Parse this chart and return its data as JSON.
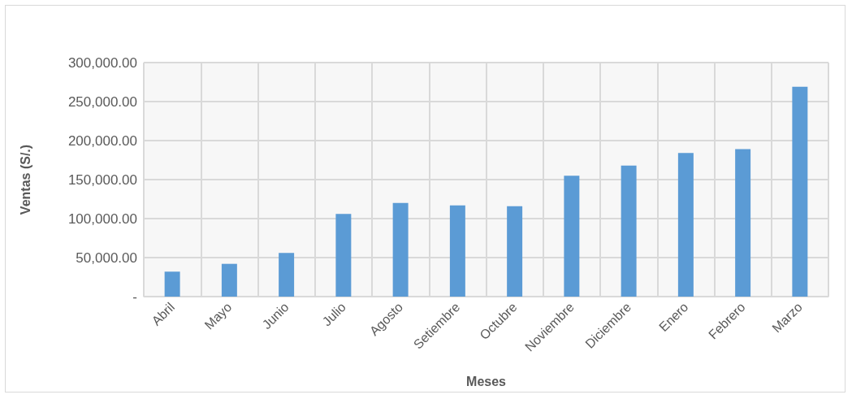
{
  "chart_data": {
    "type": "bar",
    "xlabel": "Meses",
    "ylabel": "Ventas (S/.)",
    "categories": [
      "Abril",
      "Mayo",
      "Junio",
      "Julio",
      "Agosto",
      "Setiembre",
      "Octubre",
      "Noviembre",
      "Diciembre",
      "Enero",
      "Febrero",
      "Marzo"
    ],
    "values": [
      32000,
      42000,
      56000,
      106000,
      120000,
      117000,
      116000,
      155000,
      168000,
      184000,
      189000,
      269000
    ],
    "color": "#5b9bd5",
    "ylim": [
      0,
      300000
    ],
    "yticks": [
      {
        "value": 0,
        "label": "-"
      },
      {
        "value": 50000,
        "label": "50,000.00"
      },
      {
        "value": 100000,
        "label": "100,000.00"
      },
      {
        "value": 150000,
        "label": "150,000.00"
      },
      {
        "value": 200000,
        "label": "200,000.00"
      },
      {
        "value": 250000,
        "label": "250,000.00"
      },
      {
        "value": 300000,
        "label": "300,000.00"
      }
    ],
    "grid": true
  }
}
